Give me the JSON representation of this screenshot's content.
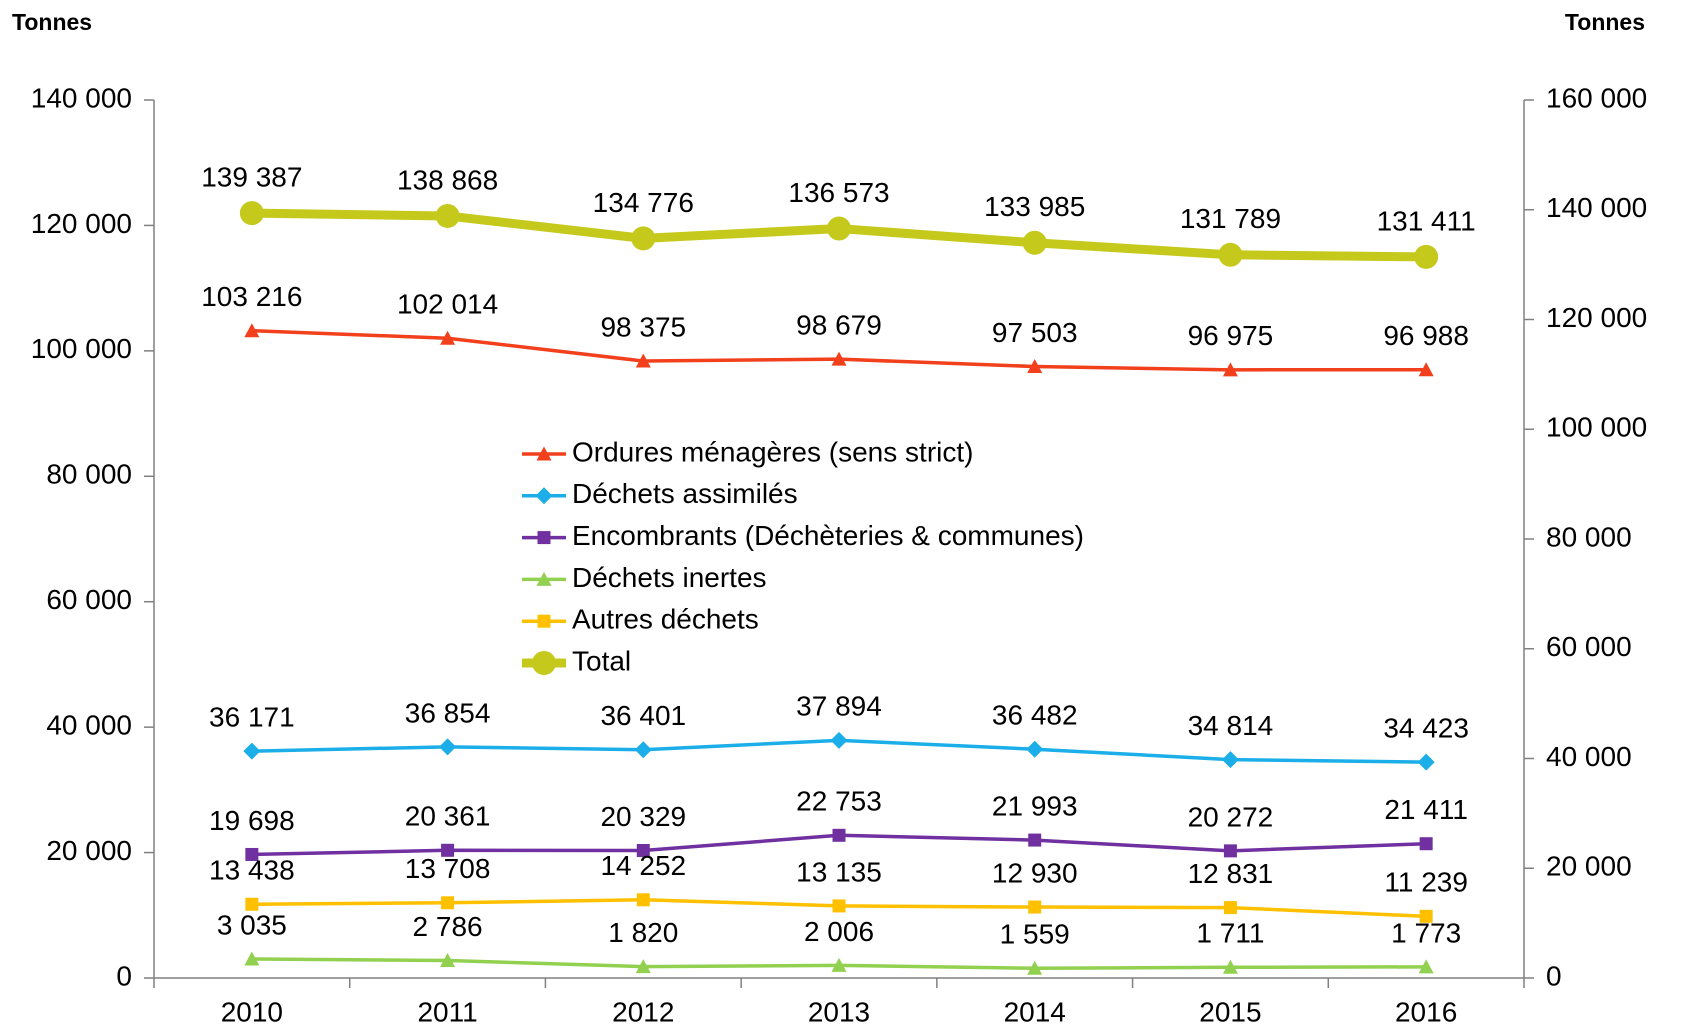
{
  "chart_data": {
    "type": "line",
    "ylabel": "Tonnes",
    "y2label": "Tonnes",
    "categories": [
      "2010",
      "2011",
      "2012",
      "2013",
      "2014",
      "2015",
      "2016"
    ],
    "series": [
      {
        "name": "Ordures ménagères (sens strict)",
        "color": "#f2401c",
        "marker": "triangle",
        "values": [
          103216,
          102014,
          98375,
          98679,
          97503,
          96975,
          96988
        ],
        "value_labels": [
          "103 216",
          "102 014",
          "98 375",
          "98 679",
          "97 503",
          "96 975",
          "96 988"
        ]
      },
      {
        "name": "Déchets assimilés",
        "color": "#1caee8",
        "marker": "diamond",
        "values": [
          36171,
          36854,
          36401,
          37894,
          36482,
          34814,
          34423
        ],
        "value_labels": [
          "36 171",
          "36 854",
          "36 401",
          "37 894",
          "36 482",
          "34 814",
          "34 423"
        ]
      },
      {
        "name": "Encombrants (Déchèteries & communes)",
        "color": "#7030a0",
        "marker": "square",
        "values": [
          19698,
          20361,
          20329,
          22753,
          21993,
          20272,
          21411
        ],
        "value_labels": [
          "19 698",
          "20 361",
          "20 329",
          "22 753",
          "21 993",
          "20 272",
          "21 411"
        ]
      },
      {
        "name": "Déchets inertes",
        "color": "#92d050",
        "marker": "triangle",
        "values": [
          3035,
          2786,
          1820,
          2006,
          1559,
          1711,
          1773
        ],
        "value_labels": [
          "3 035",
          "2 786",
          "1 820",
          "2 006",
          "1 559",
          "1 711",
          "1 773"
        ]
      },
      {
        "name": "Autres déchets",
        "color": "#ffc000",
        "marker": "square",
        "axis": "y2",
        "values": [
          13438,
          13708,
          14252,
          13135,
          12930,
          12831,
          11239
        ],
        "value_labels": [
          "13 438",
          "13 708",
          "14 252",
          "13 135",
          "12 930",
          "12 831",
          "11 239"
        ]
      },
      {
        "name": "Total",
        "color": "#c5c91c",
        "marker": "circle",
        "axis": "y2",
        "width": 9,
        "values": [
          139387,
          138868,
          134776,
          136573,
          133985,
          131789,
          131411
        ],
        "value_labels": [
          "139 387",
          "138 868",
          "134 776",
          "136 573",
          "133 985",
          "131 789",
          "131 411"
        ]
      }
    ],
    "ylim": [
      0,
      140000
    ],
    "yticks": [
      0,
      {
        "value": 20000,
        "label": "20 000"
      },
      {
        "value": 40000,
        "label": "40 000"
      },
      {
        "value": 60000,
        "label": "60 000"
      },
      {
        "value": 80000,
        "label": "80 000"
      },
      {
        "value": 100000,
        "label": "100 000"
      },
      {
        "value": 120000,
        "label": "120 000"
      },
      {
        "value": 140000,
        "label": "140 000"
      }
    ],
    "y2lim": [
      0,
      160000
    ],
    "y2ticks": [
      0,
      {
        "value": 20000,
        "label": "20 000"
      },
      {
        "value": 40000,
        "label": "40 000"
      },
      {
        "value": 60000,
        "label": "60 000"
      },
      {
        "value": 80000,
        "label": "80 000"
      },
      {
        "value": 100000,
        "label": "100 000"
      },
      {
        "value": 120000,
        "label": "120 000"
      },
      {
        "value": 140000,
        "label": "140 000"
      },
      {
        "value": 160000,
        "label": "160 000"
      }
    ]
  }
}
